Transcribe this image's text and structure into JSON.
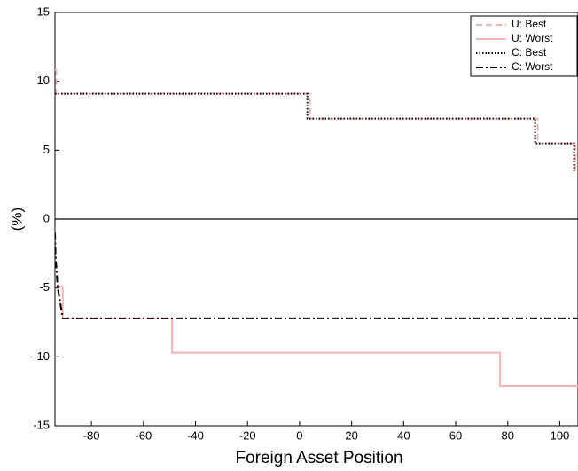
{
  "chart_data": {
    "type": "line",
    "xlabel": "Foreign Asset Position",
    "ylabel": "(%)",
    "xlim": [
      -94,
      107
    ],
    "ylim": [
      -15,
      15
    ],
    "xticks": [
      -80,
      -60,
      -40,
      -20,
      0,
      20,
      40,
      60,
      80,
      100
    ],
    "yticks": [
      -15,
      -10,
      -5,
      0,
      5,
      10,
      15
    ],
    "hlines": [
      0
    ],
    "legend": "upper right",
    "series": [
      {
        "name": "U: Best",
        "color": "#f4b4b4",
        "style": "dashed",
        "x": [
          -94,
          -93.5,
          -93.5,
          4,
          4,
          91.5,
          91.5,
          106,
          106
        ],
        "values": [
          10.8,
          10.8,
          9.1,
          9.1,
          7.3,
          7.3,
          5.5,
          5.5,
          3.5
        ]
      },
      {
        "name": "U: Worst",
        "color": "#f4b4b4",
        "style": "solid",
        "x": [
          -94,
          -91,
          -91,
          -49,
          -49,
          77,
          77,
          107
        ],
        "values": [
          -4.9,
          -4.9,
          -7.2,
          -7.2,
          -9.7,
          -9.7,
          -12.1,
          -12.1
        ]
      },
      {
        "name": "C: Best",
        "color": "#000000",
        "style": "dotted",
        "x": [
          -94,
          3,
          3,
          90.5,
          90.5,
          105.5,
          105.5
        ],
        "values": [
          9.1,
          9.1,
          7.3,
          7.3,
          5.5,
          5.5,
          3.5
        ]
      },
      {
        "name": "C: Worst",
        "color": "#000000",
        "style": "dashdot",
        "x": [
          -94,
          -93.8,
          -93.8,
          -93,
          -93,
          -91,
          -91,
          107
        ],
        "values": [
          -1,
          -2.5,
          -2.5,
          -4.9,
          -4.9,
          -7.2,
          -7.2,
          -7.2
        ]
      }
    ]
  }
}
